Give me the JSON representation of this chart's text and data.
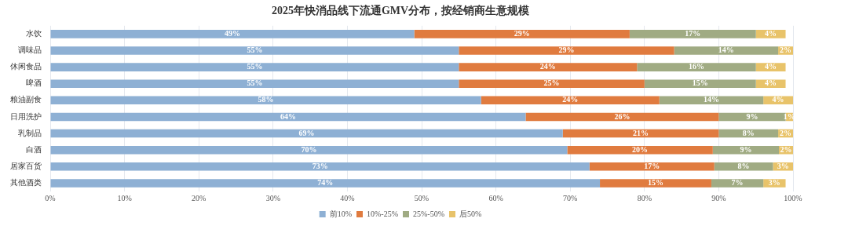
{
  "chart_data": {
    "type": "bar",
    "orientation": "horizontal",
    "stacked": true,
    "title": "2025年快消品线下流通GMV分布，按经销商生意规模",
    "categories": [
      "水饮",
      "调味品",
      "休闲食品",
      "啤酒",
      "粮油副食",
      "日用洗护",
      "乳制品",
      "白酒",
      "居家百货",
      "其他酒类"
    ],
    "series": [
      {
        "name": "前10%",
        "color": "#8eb0d4",
        "values": [
          49,
          55,
          55,
          55,
          58,
          64,
          69,
          69.6,
          72.6,
          74
        ],
        "value_labels": [
          "49%",
          "55%",
          "55%",
          "55%",
          "58%",
          "64%",
          "69%",
          "70%",
          "73%",
          "74%"
        ]
      },
      {
        "name": "10%-25%",
        "color": "#e07b3f",
        "values": [
          29,
          29,
          24,
          25,
          24,
          26,
          21,
          19.6,
          16.8,
          15
        ],
        "value_labels": [
          "29%",
          "29%",
          "24%",
          "25%",
          "24%",
          "26%",
          "21%",
          "20%",
          "17%",
          "15%"
        ]
      },
      {
        "name": "25%-50%",
        "color": "#a0ab83",
        "values": [
          17,
          14,
          16,
          15,
          14,
          9,
          8,
          8.9,
          7.9,
          7
        ],
        "value_labels": [
          "17%",
          "14%",
          "16%",
          "15%",
          "14%",
          "9%",
          "8%",
          "9%",
          "8%",
          "7%"
        ]
      },
      {
        "name": "后50%",
        "color": "#e8c36a",
        "values": [
          4,
          2,
          4,
          4,
          4,
          1,
          2,
          1.9,
          2.7,
          3
        ],
        "value_labels": [
          "4%",
          "2%",
          "4%",
          "4%",
          "4%",
          "1%",
          "2%",
          "2%",
          "3%",
          "3%"
        ]
      }
    ],
    "xlim": [
      0,
      100
    ],
    "xticks": [
      {
        "value": 0,
        "label": "0%"
      },
      {
        "value": 10,
        "label": "10%"
      },
      {
        "value": 20,
        "label": "20%"
      },
      {
        "value": 30,
        "label": "30%"
      },
      {
        "value": 40,
        "label": "40%"
      },
      {
        "value": 50,
        "label": "50%"
      },
      {
        "value": 60,
        "label": "60%"
      },
      {
        "value": 70,
        "label": "70%"
      },
      {
        "value": 80,
        "label": "80%"
      },
      {
        "value": 90,
        "label": "90%"
      },
      {
        "value": 100,
        "label": "100%"
      }
    ],
    "grid": "x",
    "legend": "bottom"
  }
}
